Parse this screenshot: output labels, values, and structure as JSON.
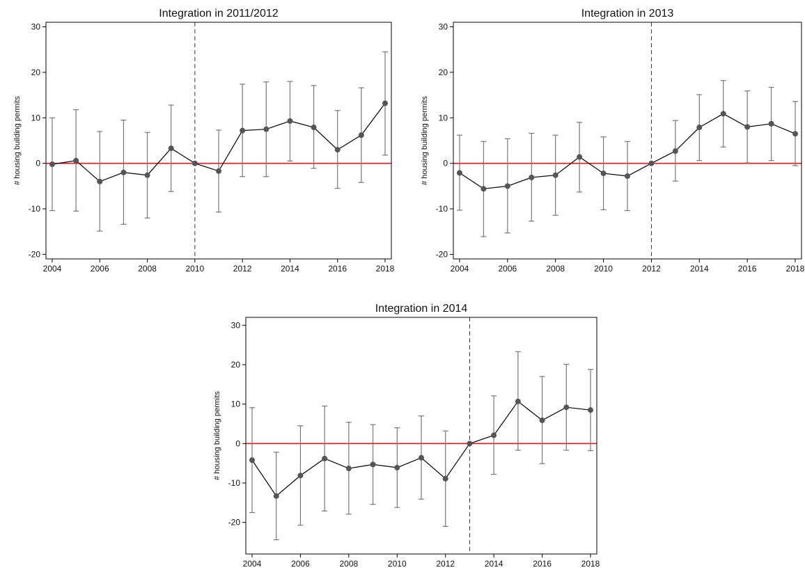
{
  "chart_data": [
    {
      "type": "line",
      "title": "Integration in 2011/2012",
      "xlabel": "",
      "ylabel": "# housing building permits",
      "xlim": [
        2004,
        2018
      ],
      "ylim": [
        -21,
        31
      ],
      "xticks": [
        2004,
        2006,
        2008,
        2010,
        2012,
        2014,
        2016,
        2018
      ],
      "yticks": [
        -20,
        -10,
        0,
        10,
        20,
        30
      ],
      "reference_line_y": 0,
      "reference_line_color": "#e8141c",
      "event_line_x": 2010,
      "marker_color": "#555555",
      "errorbar_color": "#777777",
      "series": [
        {
          "x": [
            2004,
            2005,
            2006,
            2007,
            2008,
            2009,
            2010,
            2011,
            2012,
            2013,
            2014,
            2015,
            2016,
            2017,
            2018
          ],
          "y": [
            -0.2,
            0.6,
            -4.0,
            -2.0,
            -2.6,
            3.3,
            0.0,
            -1.7,
            7.2,
            7.5,
            9.3,
            7.9,
            3.0,
            6.2,
            13.2
          ],
          "ci_low": [
            -10.4,
            -10.5,
            -14.9,
            -13.4,
            -12.0,
            -6.2,
            0.0,
            -10.7,
            -2.9,
            -2.9,
            0.5,
            -1.1,
            -5.5,
            -4.2,
            1.8
          ],
          "ci_high": [
            10.0,
            11.8,
            7.0,
            9.5,
            6.8,
            12.8,
            0.0,
            7.3,
            17.4,
            17.9,
            18.0,
            17.1,
            11.6,
            16.6,
            24.5
          ]
        }
      ]
    },
    {
      "type": "line",
      "title": "Integration in 2013",
      "xlabel": "",
      "ylabel": "# housing building permits",
      "xlim": [
        2004,
        2018
      ],
      "ylim": [
        -21,
        31
      ],
      "xticks": [
        2004,
        2006,
        2008,
        2010,
        2012,
        2014,
        2016,
        2018
      ],
      "yticks": [
        -20,
        -10,
        0,
        10,
        20,
        30
      ],
      "reference_line_y": 0,
      "reference_line_color": "#e8141c",
      "event_line_x": 2012,
      "marker_color": "#555555",
      "errorbar_color": "#777777",
      "series": [
        {
          "x": [
            2004,
            2005,
            2006,
            2007,
            2008,
            2009,
            2010,
            2011,
            2012,
            2013,
            2014,
            2015,
            2016,
            2017,
            2018
          ],
          "y": [
            -2.1,
            -5.6,
            -5.0,
            -3.1,
            -2.6,
            1.4,
            -2.2,
            -2.8,
            0.0,
            2.7,
            7.9,
            10.9,
            8.0,
            8.7,
            6.5
          ],
          "ci_low": [
            -10.3,
            -16.1,
            -15.3,
            -12.7,
            -11.4,
            -6.3,
            -10.2,
            -10.4,
            0.0,
            -3.9,
            0.6,
            3.6,
            0.1,
            0.6,
            -0.5
          ],
          "ci_high": [
            6.2,
            4.8,
            5.4,
            6.6,
            6.2,
            9.0,
            5.8,
            4.8,
            0.0,
            9.4,
            15.1,
            18.2,
            15.9,
            16.7,
            13.6
          ]
        }
      ]
    },
    {
      "type": "line",
      "title": "Integration in 2014",
      "xlabel": "",
      "ylabel": "# housing building permits",
      "xlim": [
        2004,
        2018
      ],
      "ylim": [
        -28,
        32
      ],
      "xticks": [
        2004,
        2006,
        2008,
        2010,
        2012,
        2014,
        2016,
        2018
      ],
      "yticks": [
        -20,
        -10,
        0,
        10,
        20,
        30
      ],
      "reference_line_y": 0,
      "reference_line_color": "#e8141c",
      "event_line_x": 2013,
      "marker_color": "#555555",
      "errorbar_color": "#777777",
      "series": [
        {
          "x": [
            2004,
            2005,
            2006,
            2007,
            2008,
            2009,
            2010,
            2011,
            2012,
            2013,
            2014,
            2015,
            2016,
            2017,
            2018
          ],
          "y": [
            -4.2,
            -13.3,
            -8.1,
            -3.8,
            -6.3,
            -5.3,
            -6.1,
            -3.6,
            -8.9,
            0.0,
            2.1,
            10.7,
            5.9,
            9.2,
            8.5
          ],
          "ci_low": [
            -17.5,
            -24.4,
            -20.7,
            -17.1,
            -17.9,
            -15.4,
            -16.2,
            -14.1,
            -21.0,
            0.0,
            -7.8,
            -1.7,
            -5.1,
            -1.7,
            -1.8
          ],
          "ci_high": [
            9.1,
            -2.2,
            4.5,
            9.5,
            5.4,
            4.8,
            4.0,
            7.0,
            3.2,
            0.0,
            12.1,
            23.3,
            17.0,
            20.1,
            18.8
          ]
        }
      ]
    }
  ]
}
